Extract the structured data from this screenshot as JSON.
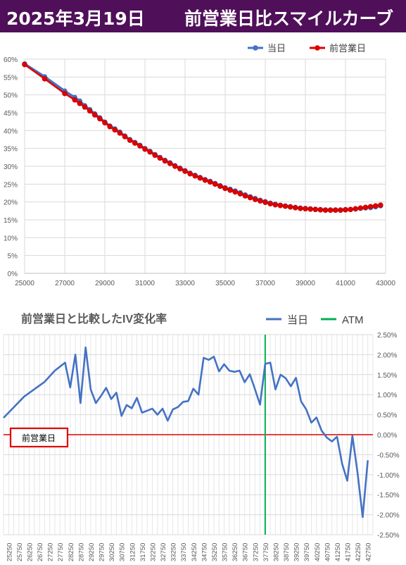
{
  "header": {
    "date": "2025年3月19日",
    "title": "前営業日比スマイルカーブ"
  },
  "colors": {
    "header_bg": "#4f0f59",
    "today": "#4472c4",
    "prev_day": "#e00000",
    "atm": "#00b050",
    "iv_line": "#4472c4",
    "zero_line": "#e00000"
  },
  "chart_data": [
    {
      "type": "line",
      "title": "",
      "legend": {
        "position": "top-right",
        "entries": [
          "当日",
          "前営業日"
        ]
      },
      "xlim": [
        25000,
        43000
      ],
      "ylim": [
        0,
        0.6
      ],
      "x_ticks": [
        "25000",
        "27000",
        "29000",
        "31000",
        "33000",
        "35000",
        "37000",
        "39000",
        "41000",
        "43000"
      ],
      "y_ticks": [
        "0%",
        "5%",
        "10%",
        "15%",
        "20%",
        "25%",
        "30%",
        "35%",
        "40%",
        "45%",
        "50%",
        "55%",
        "60%"
      ],
      "grid": true,
      "series": [
        {
          "name": "当日",
          "x": [
            25000,
            26000,
            27000,
            27500,
            27750,
            28000,
            28250,
            28500,
            28750,
            29000,
            29250,
            29500,
            29750,
            30000,
            30250,
            30500,
            30750,
            31000,
            31250,
            31500,
            31750,
            32000,
            32250,
            32500,
            32750,
            33000,
            33250,
            33500,
            33750,
            34000,
            34250,
            34500,
            34750,
            35000,
            35250,
            35500,
            35750,
            36000,
            36250,
            36500,
            36750,
            37000,
            37250,
            37500,
            37750,
            38000,
            38250,
            38500,
            38750,
            39000,
            39250,
            39500,
            39750,
            40000,
            40250,
            40500,
            40750,
            41000,
            41250,
            41500,
            41750,
            42000,
            42250,
            42500,
            42750
          ],
          "y": [
            0.587,
            0.551,
            0.511,
            0.493,
            0.483,
            0.47,
            0.459,
            0.447,
            0.436,
            0.424,
            0.413,
            0.405,
            0.396,
            0.385,
            0.375,
            0.367,
            0.359,
            0.35,
            0.342,
            0.333,
            0.325,
            0.317,
            0.31,
            0.302,
            0.295,
            0.288,
            0.281,
            0.275,
            0.269,
            0.263,
            0.258,
            0.252,
            0.246,
            0.24,
            0.236,
            0.231,
            0.226,
            0.22,
            0.215,
            0.21,
            0.205,
            0.201,
            0.197,
            0.194,
            0.191,
            0.189,
            0.187,
            0.185,
            0.183,
            0.182,
            0.181,
            0.18,
            0.179,
            0.178,
            0.178,
            0.178,
            0.178,
            0.179,
            0.179,
            0.18,
            0.182,
            0.183,
            0.184,
            0.186,
            0.189
          ]
        },
        {
          "name": "前営業日",
          "x": [
            25000,
            26000,
            27000,
            27500,
            27750,
            28000,
            28250,
            28500,
            28750,
            29000,
            29250,
            29500,
            29750,
            30000,
            30250,
            30500,
            30750,
            31000,
            31250,
            31500,
            31750,
            32000,
            32250,
            32500,
            32750,
            33000,
            33250,
            33500,
            33750,
            34000,
            34250,
            34500,
            34750,
            35000,
            35250,
            35500,
            35750,
            36000,
            36250,
            36500,
            36750,
            37000,
            37250,
            37500,
            37750,
            38000,
            38250,
            38500,
            38750,
            39000,
            39250,
            39500,
            39750,
            40000,
            40250,
            40500,
            40750,
            41000,
            41250,
            41500,
            41750,
            42000,
            42250,
            42500,
            42750
          ],
          "y": [
            0.585,
            0.545,
            0.504,
            0.486,
            0.476,
            0.466,
            0.455,
            0.444,
            0.433,
            0.422,
            0.411,
            0.402,
            0.393,
            0.383,
            0.373,
            0.365,
            0.357,
            0.348,
            0.34,
            0.331,
            0.323,
            0.315,
            0.308,
            0.3,
            0.293,
            0.286,
            0.279,
            0.273,
            0.267,
            0.261,
            0.256,
            0.25,
            0.244,
            0.238,
            0.233,
            0.228,
            0.223,
            0.217,
            0.212,
            0.207,
            0.203,
            0.199,
            0.195,
            0.192,
            0.19,
            0.188,
            0.186,
            0.184,
            0.182,
            0.181,
            0.18,
            0.179,
            0.178,
            0.177,
            0.177,
            0.177,
            0.177,
            0.178,
            0.179,
            0.181,
            0.183,
            0.185,
            0.187,
            0.189,
            0.191
          ]
        }
      ]
    },
    {
      "type": "line",
      "title": "前営業日と比較したIV変化率",
      "legend": {
        "position": "top-right",
        "entries": [
          "当日",
          "ATM"
        ]
      },
      "ylim": [
        -0.025,
        0.025
      ],
      "y_ticks": [
        "2.50%",
        "2.00%",
        "1.50%",
        "1.00%",
        "0.50%",
        "0.00%",
        "-0.50%",
        "-1.00%",
        "-1.50%",
        "-2.00%",
        "-2.50%"
      ],
      "categories": [
        "25250",
        "25750",
        "26250",
        "26750",
        "27250",
        "27750",
        "28250",
        "28750",
        "29250",
        "29750",
        "30250",
        "30750",
        "31250",
        "31750",
        "32250",
        "32750",
        "33250",
        "33750",
        "34250",
        "34750",
        "35250",
        "35750",
        "36250",
        "36750",
        "37250",
        "37750",
        "38250",
        "38750",
        "39250",
        "39750",
        "40250",
        "40750",
        "41250",
        "41750",
        "42250",
        "42750"
      ],
      "atm_x": 37750,
      "reference_label": "前営業日",
      "grid": true,
      "series": [
        {
          "name": "当日",
          "x": [
            25000,
            26000,
            27000,
            27500,
            27750,
            28000,
            28250,
            28500,
            28750,
            29000,
            29250,
            29500,
            29750,
            30000,
            30250,
            30500,
            30750,
            31000,
            31250,
            31500,
            31750,
            32000,
            32250,
            32500,
            32750,
            33000,
            33250,
            33500,
            33750,
            34000,
            34250,
            34500,
            34750,
            35000,
            35250,
            35500,
            35750,
            36000,
            36250,
            36500,
            36750,
            37000,
            37250,
            37500,
            37750,
            38000,
            38250,
            38500,
            38750,
            39000,
            39250,
            39500,
            39750,
            40000,
            40250,
            40500,
            40750,
            41000,
            41250,
            41500,
            41750,
            42000,
            42250,
            42500,
            42750
          ],
          "y": [
            0.0042,
            0.0095,
            0.0132,
            0.016,
            0.017,
            0.018,
            0.0118,
            0.02,
            0.0079,
            0.0218,
            0.0113,
            0.0079,
            0.0097,
            0.0117,
            0.0089,
            0.0105,
            0.0047,
            0.0074,
            0.0066,
            0.0092,
            0.0055,
            0.006,
            0.0065,
            0.005,
            0.0065,
            0.0035,
            0.0063,
            0.0069,
            0.0082,
            0.0084,
            0.0115,
            0.01,
            0.0192,
            0.0187,
            0.0195,
            0.0158,
            0.0176,
            0.016,
            0.0157,
            0.016,
            0.0131,
            0.0151,
            0.0114,
            0.0075,
            0.0177,
            0.018,
            0.0113,
            0.015,
            0.0141,
            0.0121,
            0.0142,
            0.0083,
            0.0063,
            0.003,
            0.0043,
            0.001,
            -0.0007,
            -0.0017,
            -0.0005,
            -0.0073,
            -0.0115,
            -0.0003,
            -0.0095,
            -0.0206,
            -0.0064
          ]
        }
      ]
    }
  ]
}
